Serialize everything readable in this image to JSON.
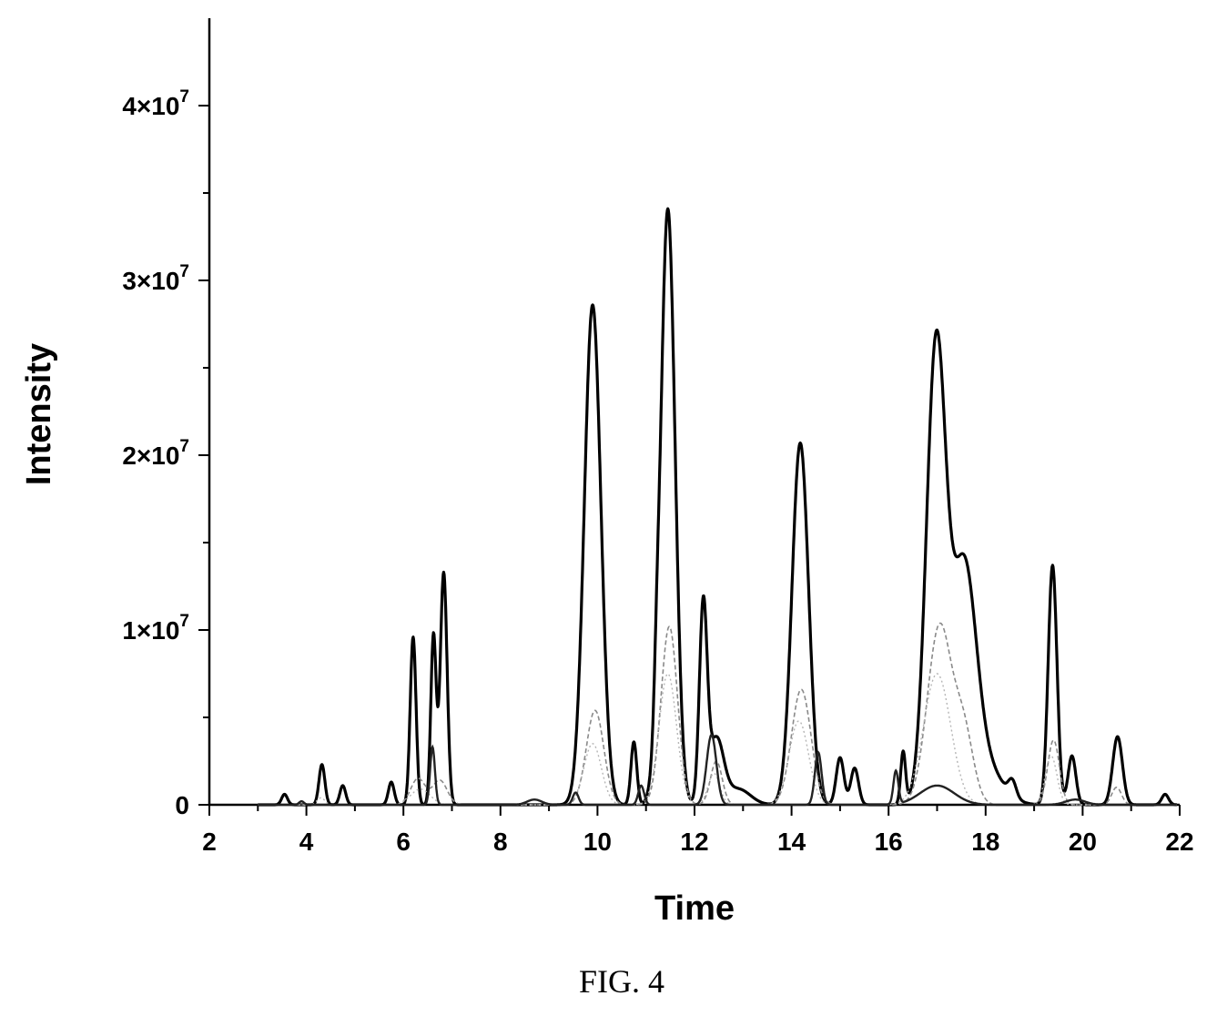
{
  "chart_data": {
    "type": "line",
    "xlabel": "Time",
    "ylabel": "Intensity",
    "xlim": [
      2,
      22
    ],
    "ylim": [
      0,
      45000000
    ],
    "x_ticks": [
      2,
      4,
      6,
      8,
      10,
      12,
      14,
      16,
      18,
      20,
      22
    ],
    "y_ticks": [
      {
        "value": 0,
        "mantissa": "0",
        "exponent": ""
      },
      {
        "value": 10000000,
        "mantissa": "1×10",
        "exponent": "7"
      },
      {
        "value": 20000000,
        "mantissa": "2×10",
        "exponent": "7"
      },
      {
        "value": 30000000,
        "mantissa": "3×10",
        "exponent": "7"
      },
      {
        "value": 40000000,
        "mantissa": "4×10",
        "exponent": "7"
      }
    ],
    "series": [
      {
        "style": "main",
        "peaks": [
          {
            "t": 3.55,
            "h": 600000,
            "w": 0.06
          },
          {
            "t": 4.32,
            "h": 2300000,
            "w": 0.06
          },
          {
            "t": 4.75,
            "h": 1100000,
            "w": 0.06
          },
          {
            "t": 5.75,
            "h": 1300000,
            "w": 0.06
          },
          {
            "t": 6.2,
            "h": 9600000,
            "w": 0.06
          },
          {
            "t": 6.62,
            "h": 9700000,
            "w": 0.055
          },
          {
            "t": 6.83,
            "h": 13300000,
            "w": 0.07
          },
          {
            "t": 9.9,
            "h": 28600000,
            "w": 0.17
          },
          {
            "t": 10.75,
            "h": 3600000,
            "w": 0.06
          },
          {
            "t": 11.22,
            "h": 2000000,
            "w": 0.05
          },
          {
            "t": 11.45,
            "h": 34100000,
            "w": 0.15
          },
          {
            "t": 12.18,
            "h": 11200000,
            "w": 0.08
          },
          {
            "t": 12.45,
            "h": 3700000,
            "w": 0.15
          },
          {
            "t": 12.9,
            "h": 900000,
            "w": 0.25
          },
          {
            "t": 14.18,
            "h": 20700000,
            "w": 0.17
          },
          {
            "t": 15.0,
            "h": 2700000,
            "w": 0.08
          },
          {
            "t": 15.3,
            "h": 2100000,
            "w": 0.08
          },
          {
            "t": 16.3,
            "h": 3000000,
            "w": 0.05
          },
          {
            "t": 16.98,
            "h": 26100000,
            "w": 0.2
          },
          {
            "t": 17.55,
            "h": 13000000,
            "w": 0.25
          },
          {
            "t": 18.0,
            "h": 2000000,
            "w": 0.35
          },
          {
            "t": 18.55,
            "h": 900000,
            "w": 0.08
          },
          {
            "t": 19.38,
            "h": 13700000,
            "w": 0.09
          },
          {
            "t": 19.78,
            "h": 2800000,
            "w": 0.08
          },
          {
            "t": 20.72,
            "h": 3900000,
            "w": 0.1
          },
          {
            "t": 21.7,
            "h": 600000,
            "w": 0.07
          }
        ]
      },
      {
        "style": "mid",
        "peaks": [
          {
            "t": 6.3,
            "h": 1500000,
            "w": 0.15
          },
          {
            "t": 6.75,
            "h": 1400000,
            "w": 0.15
          },
          {
            "t": 9.95,
            "h": 5400000,
            "w": 0.18
          },
          {
            "t": 11.48,
            "h": 10200000,
            "w": 0.17
          },
          {
            "t": 12.45,
            "h": 2500000,
            "w": 0.12
          },
          {
            "t": 14.2,
            "h": 6600000,
            "w": 0.2
          },
          {
            "t": 17.05,
            "h": 10200000,
            "w": 0.25
          },
          {
            "t": 17.55,
            "h": 4000000,
            "w": 0.2
          },
          {
            "t": 19.4,
            "h": 3700000,
            "w": 0.12
          },
          {
            "t": 20.7,
            "h": 1000000,
            "w": 0.1
          }
        ]
      },
      {
        "style": "low",
        "peaks": [
          {
            "t": 4.3,
            "h": 400000,
            "w": 0.08
          },
          {
            "t": 6.35,
            "h": 900000,
            "w": 0.2
          },
          {
            "t": 9.9,
            "h": 3500000,
            "w": 0.18
          },
          {
            "t": 11.45,
            "h": 7500000,
            "w": 0.18
          },
          {
            "t": 12.4,
            "h": 1800000,
            "w": 0.12
          },
          {
            "t": 14.15,
            "h": 4800000,
            "w": 0.2
          },
          {
            "t": 17.0,
            "h": 7500000,
            "w": 0.28
          },
          {
            "t": 19.35,
            "h": 2800000,
            "w": 0.12
          }
        ]
      },
      {
        "style": "thin",
        "peaks": [
          {
            "t": 3.9,
            "h": 200000,
            "w": 0.05
          },
          {
            "t": 6.6,
            "h": 3300000,
            "w": 0.05
          },
          {
            "t": 8.7,
            "h": 300000,
            "w": 0.15
          },
          {
            "t": 9.55,
            "h": 700000,
            "w": 0.06
          },
          {
            "t": 10.9,
            "h": 1100000,
            "w": 0.06
          },
          {
            "t": 12.35,
            "h": 4000000,
            "w": 0.1
          },
          {
            "t": 14.55,
            "h": 3000000,
            "w": 0.07
          },
          {
            "t": 16.15,
            "h": 1900000,
            "w": 0.05
          },
          {
            "t": 17.0,
            "h": 1100000,
            "w": 0.35
          },
          {
            "t": 19.85,
            "h": 300000,
            "w": 0.2
          }
        ]
      }
    ],
    "caption": "FIG. 4"
  }
}
